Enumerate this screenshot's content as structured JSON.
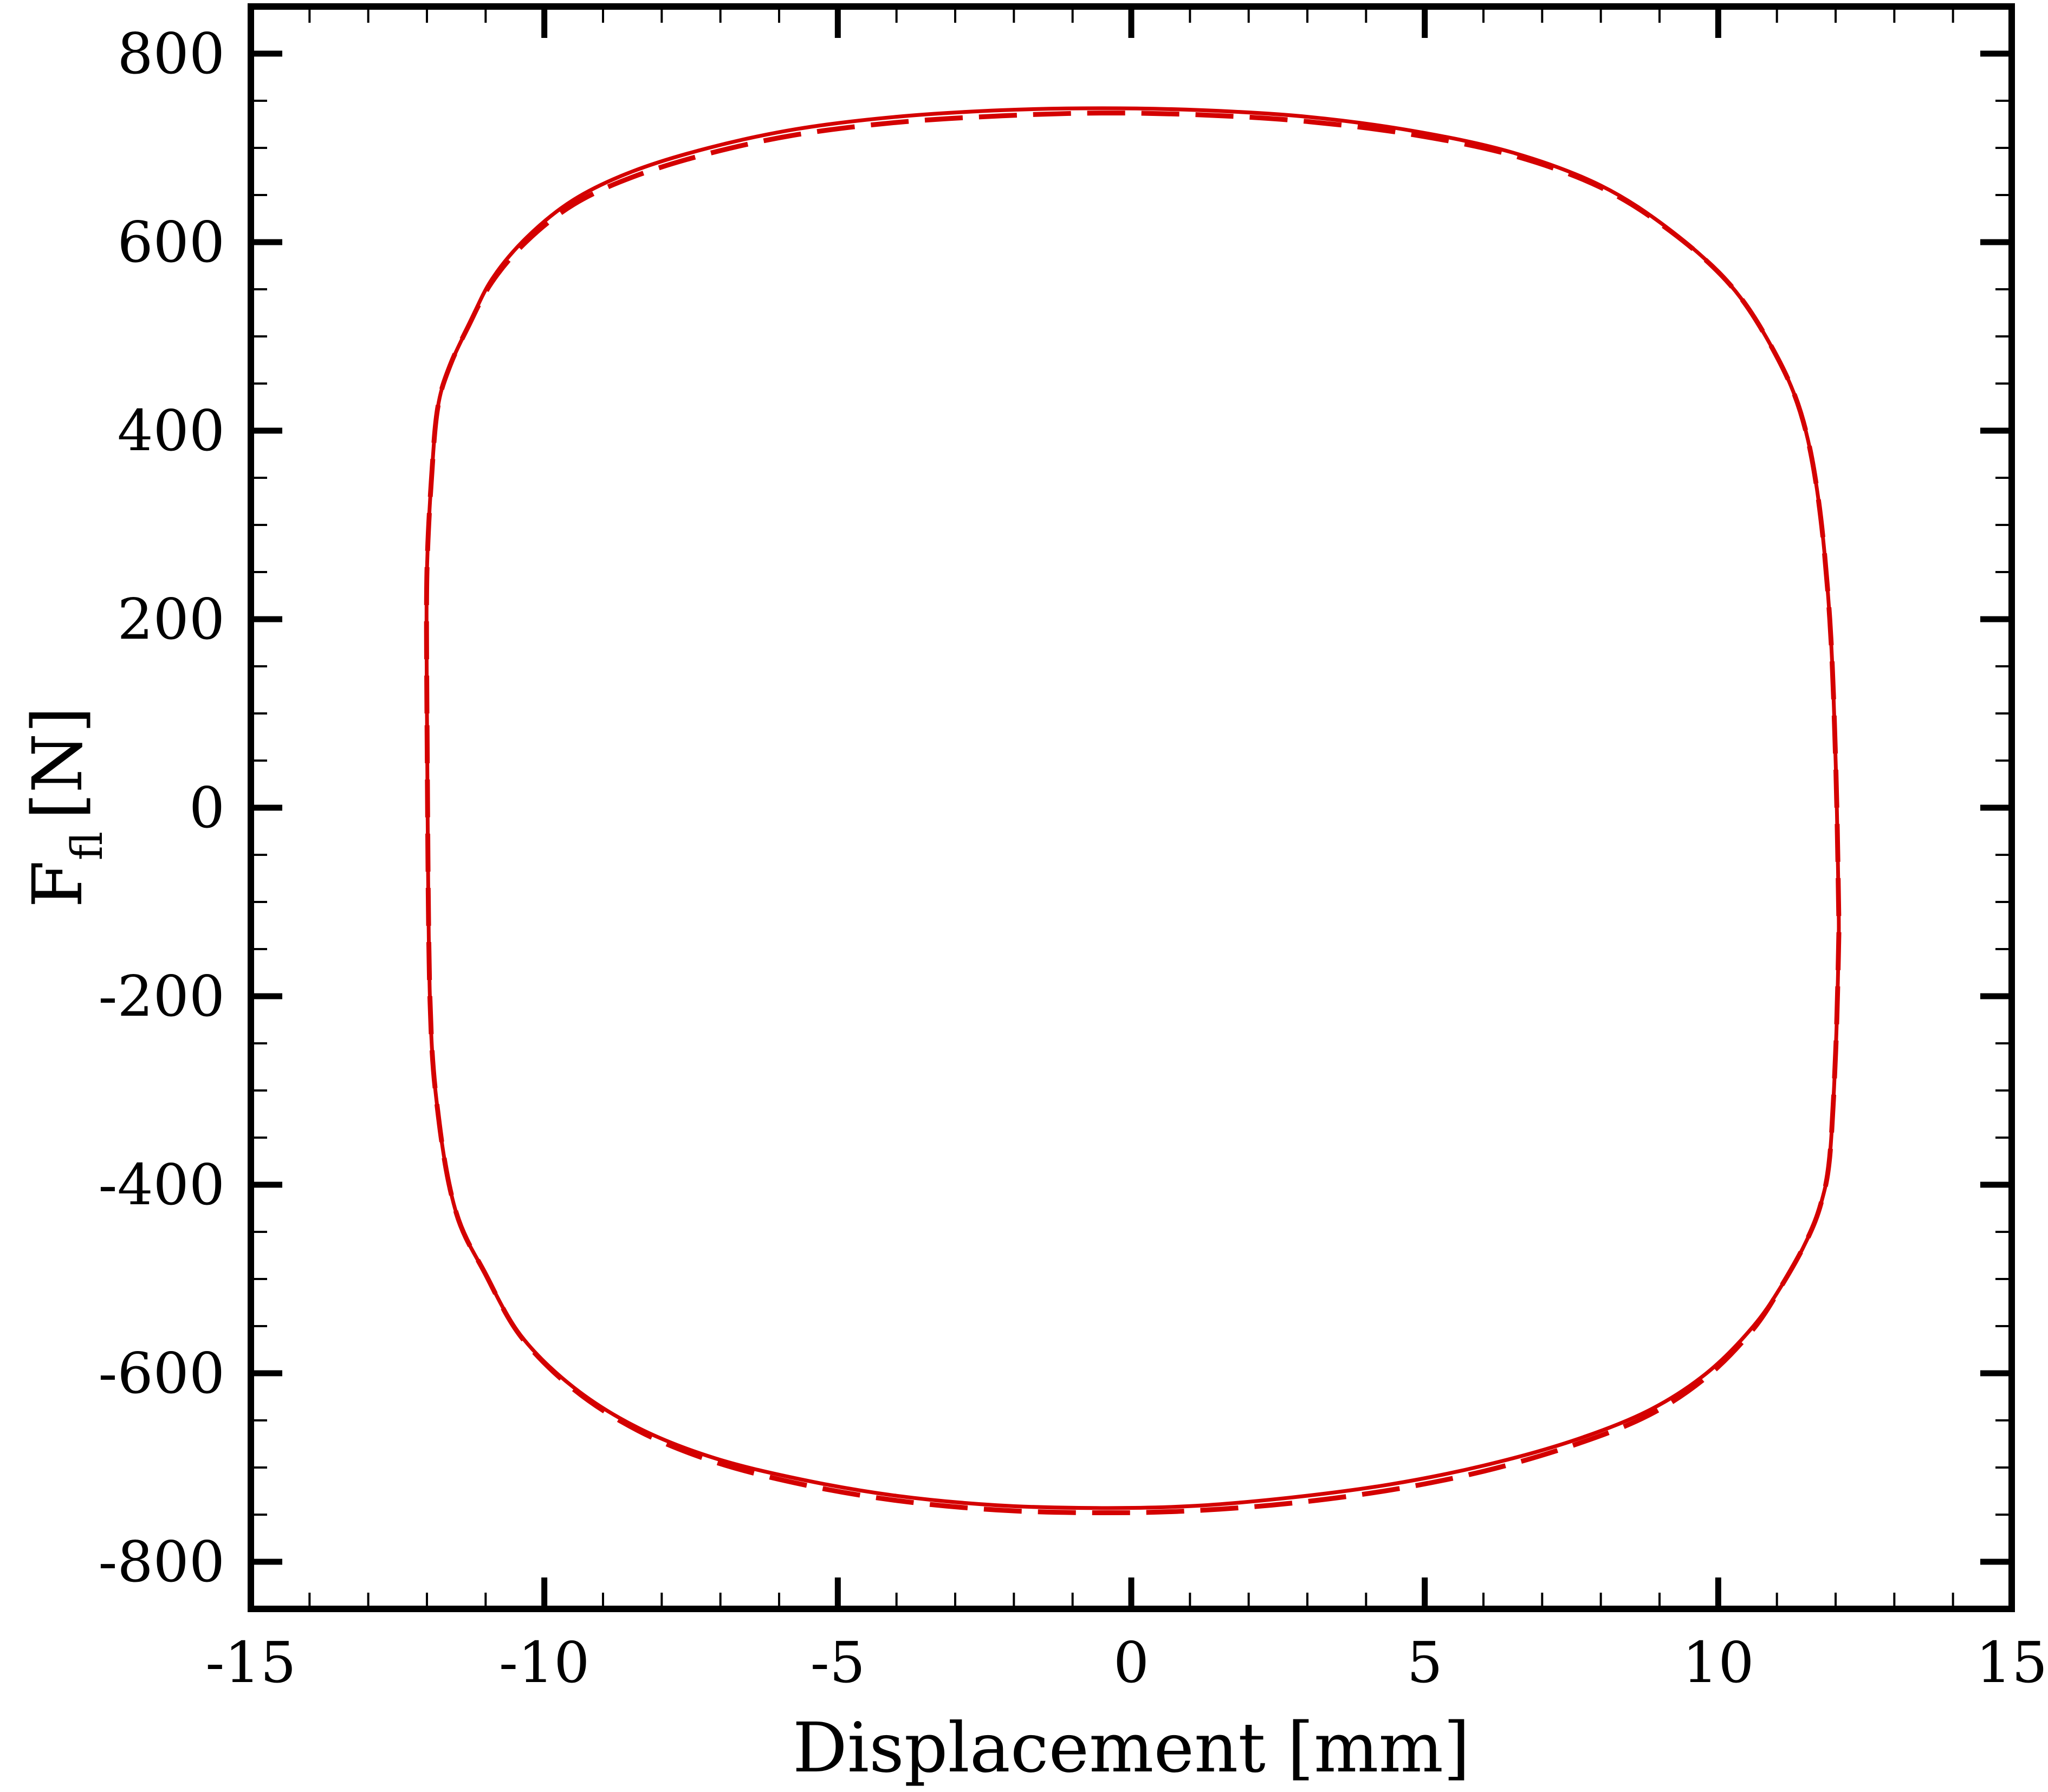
{
  "chart_data": {
    "type": "line",
    "xlabel": "Displacement [mm]",
    "ylabel": {
      "main": "F",
      "sub": "fl",
      "unit": "[N]"
    },
    "xlim": [
      -15,
      15
    ],
    "ylim": [
      -850,
      850
    ],
    "x_ticks": [
      -15,
      -10,
      -5,
      0,
      5,
      10,
      15
    ],
    "y_ticks": [
      -800,
      -600,
      -400,
      -200,
      0,
      200,
      400,
      600,
      800
    ],
    "x_tick_labels": [
      "-15",
      "-10",
      "-5",
      "0",
      "5",
      "10",
      "15"
    ],
    "y_tick_labels": [
      "-800",
      "-600",
      "-400",
      "-200",
      "0",
      "200",
      "400",
      "600",
      "800"
    ],
    "x_minor_step": 1,
    "y_minor_step": 50,
    "grid": false,
    "line_color": "#d40000",
    "series": [
      {
        "style": "solid",
        "x": [
          -12.0,
          -12.0,
          -11.9,
          -11.8,
          -11.6,
          -11.3,
          -10.9,
          -10.3,
          -9.5,
          -8.5,
          -7.2,
          -5.7,
          -4.0,
          -2.2,
          -0.5,
          1.2,
          3.0,
          4.8,
          6.5,
          8.0,
          9.2,
          10.2,
          10.9,
          11.4,
          11.7,
          11.9,
          12.0,
          12.05,
          12.05,
          12.0,
          11.9,
          11.75,
          11.5,
          11.1,
          10.6,
          9.8,
          8.8,
          7.5,
          6.0,
          4.4,
          2.7,
          1.0,
          -0.6,
          -2.3,
          -4.0,
          -5.6,
          -7.1,
          -8.4,
          -9.5,
          -10.4,
          -11.0,
          -11.5,
          -11.8,
          -11.95,
          -12.0
        ],
        "y": [
          100,
          250,
          370,
          430,
          470,
          510,
          560,
          605,
          645,
          675,
          700,
          720,
          733,
          740,
          742,
          740,
          733,
          718,
          695,
          660,
          612,
          555,
          490,
          420,
          330,
          200,
          50,
          -100,
          -150,
          -260,
          -370,
          -420,
          -460,
          -505,
          -550,
          -600,
          -640,
          -672,
          -698,
          -718,
          -732,
          -741,
          -743,
          -740,
          -730,
          -713,
          -690,
          -658,
          -615,
          -560,
          -495,
          -430,
          -330,
          -200,
          100
        ]
      },
      {
        "style": "dashed",
        "x": [
          -12.0,
          -12.0,
          -11.9,
          -11.8,
          -11.6,
          -11.3,
          -10.9,
          -10.3,
          -9.5,
          -8.5,
          -7.2,
          -5.7,
          -4.0,
          -2.2,
          -0.5,
          1.2,
          3.0,
          4.8,
          6.5,
          8.0,
          9.2,
          10.2,
          10.9,
          11.4,
          11.7,
          11.9,
          12.0,
          12.05,
          12.05,
          12.0,
          11.9,
          11.75,
          11.5,
          11.1,
          10.6,
          9.8,
          8.8,
          7.5,
          6.0,
          4.4,
          2.7,
          1.0,
          -0.6,
          -2.3,
          -4.0,
          -5.6,
          -7.1,
          -8.4,
          -9.5,
          -10.4,
          -11.0,
          -11.5,
          -11.8,
          -11.95,
          -12.0
        ],
        "y": [
          100,
          250,
          370,
          430,
          470,
          510,
          557,
          601,
          640,
          669,
          694,
          714,
          727,
          734,
          737,
          735,
          728,
          714,
          692,
          658,
          611,
          555,
          490,
          420,
          330,
          200,
          50,
          -100,
          -150,
          -260,
          -370,
          -420,
          -460,
          -505,
          -553,
          -604,
          -645,
          -677,
          -704,
          -724,
          -738,
          -746,
          -748,
          -745,
          -735,
          -718,
          -694,
          -661,
          -617,
          -561,
          -495,
          -430,
          -330,
          -200,
          100
        ]
      }
    ]
  }
}
